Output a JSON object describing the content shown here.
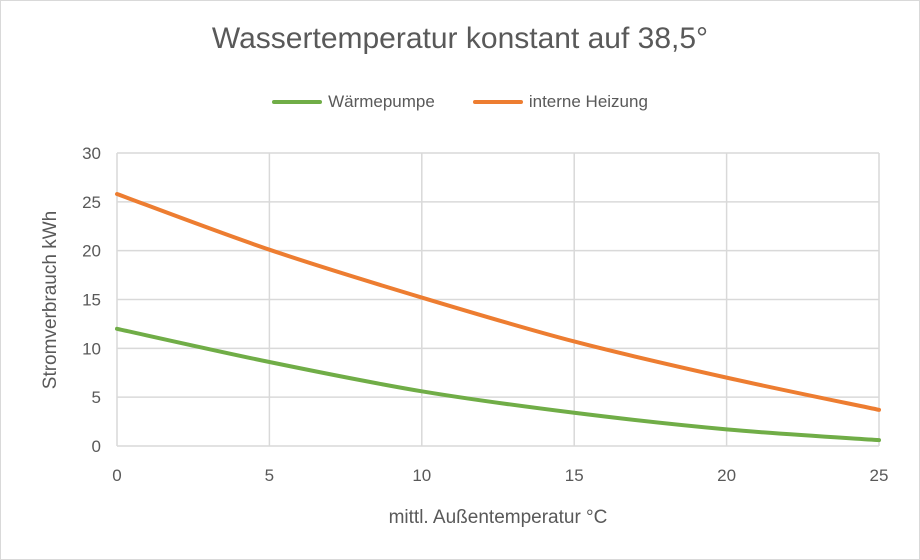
{
  "chart_data": {
    "type": "line",
    "title": "Wassertemperatur konstant auf 38,5°",
    "xlabel": "mittl. Außentemperatur °C",
    "ylabel": "Stromverbrauch kWh",
    "x": [
      0,
      5,
      10,
      15,
      20,
      25
    ],
    "xlim": [
      0,
      25
    ],
    "ylim": [
      0,
      30
    ],
    "xticks": [
      0,
      5,
      10,
      15,
      20,
      25
    ],
    "yticks": [
      0,
      5,
      10,
      15,
      20,
      25,
      30
    ],
    "grid": true,
    "legend_position": "top",
    "series": [
      {
        "name": "Wärmepumpe",
        "color": "#70ad47",
        "values": [
          12.0,
          8.6,
          5.6,
          3.4,
          1.7,
          0.6
        ]
      },
      {
        "name": "interne Heizung",
        "color": "#ed7d31",
        "values": [
          25.8,
          20.1,
          15.2,
          10.7,
          7.0,
          3.7
        ]
      }
    ]
  },
  "legend": {
    "items": [
      {
        "label": "Wärmepumpe",
        "color": "#70ad47"
      },
      {
        "label": "interne Heizung",
        "color": "#ed7d31"
      }
    ]
  }
}
